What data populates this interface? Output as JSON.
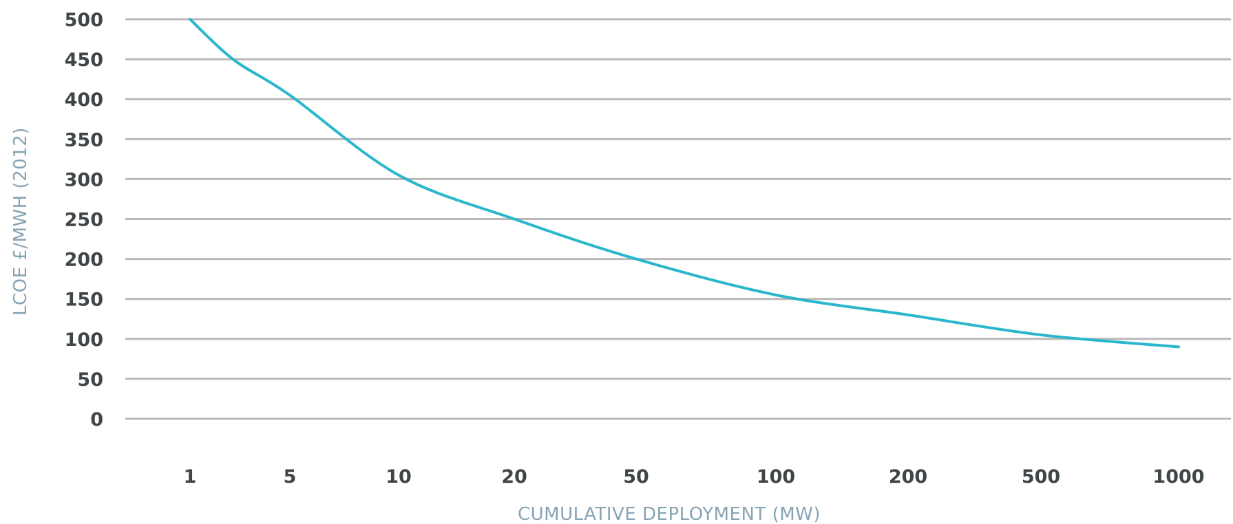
{
  "chart_data": {
    "type": "line",
    "title": "",
    "xlabel": "CUMULATIVE DEPLOYMENT (MW)",
    "ylabel": "LCOE £/MWH (2012)",
    "categories": [
      "1",
      "5",
      "10",
      "20",
      "50",
      "100",
      "200",
      "500",
      "1000"
    ],
    "y_ticks": [
      "0",
      "50",
      "100",
      "150",
      "200",
      "250",
      "300",
      "350",
      "400",
      "450",
      "500"
    ],
    "ylim": [
      0,
      500
    ],
    "grid": true,
    "series": [
      {
        "color": "#2ab7cc",
        "points": [
          {
            "x": 1,
            "y": 500
          },
          {
            "x": 2,
            "y": 450
          },
          {
            "x": 5,
            "y": 405
          },
          {
            "x": 10,
            "y": 305
          },
          {
            "x": 20,
            "y": 250
          },
          {
            "x": 50,
            "y": 200
          },
          {
            "x": 100,
            "y": 155
          },
          {
            "x": 200,
            "y": 130
          },
          {
            "x": 500,
            "y": 105
          },
          {
            "x": 1000,
            "y": 90
          }
        ]
      }
    ]
  }
}
